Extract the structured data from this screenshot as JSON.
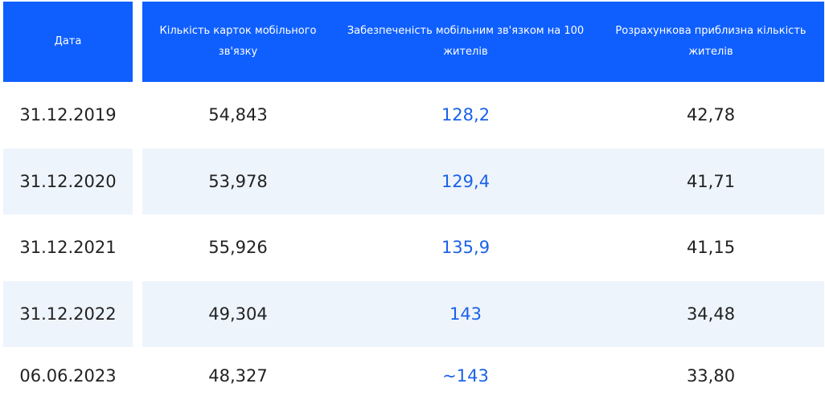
{
  "table": {
    "header": [
      "Дата",
      "Кількість карток мобільного зв'язку",
      "Забезпеченість мобільним зв'язком на 100 жителів",
      "Розрахункова приблизна кількість жителів"
    ],
    "rows": [
      [
        "31.12.2019",
        "54,843",
        "128,2",
        "42,78"
      ],
      [
        "31.12.2020",
        "53,978",
        "129,4",
        "41,71"
      ],
      [
        "31.12.2021",
        "55,926",
        "135,9",
        "41,15"
      ],
      [
        "31.12.2022",
        "49,304",
        "143",
        "34,48"
      ],
      [
        "06.06.2023",
        "48,327",
        "~143",
        "33,80"
      ]
    ]
  }
}
